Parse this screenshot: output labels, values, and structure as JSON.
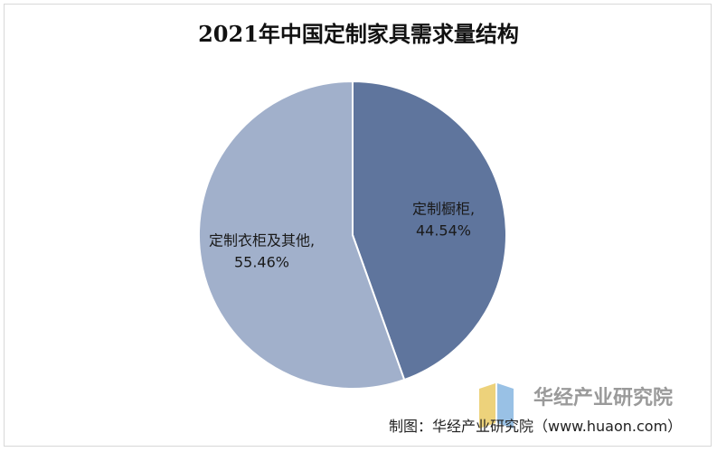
{
  "title": "2021年中国定制家具需求量结构",
  "source": "制图：华经产业研究院（www.huaon.com）",
  "watermark": "华经产业研究院",
  "chart_data": {
    "type": "pie",
    "title": "2021年中国定制家具需求量结构",
    "slices": [
      {
        "label": "定制橱柜,",
        "value": 44.54,
        "display": "44.54%",
        "color": "#5f759d"
      },
      {
        "label": "定制衣柜及其他,",
        "value": 55.46,
        "display": "55.46%",
        "color": "#a1b0cb"
      }
    ]
  }
}
